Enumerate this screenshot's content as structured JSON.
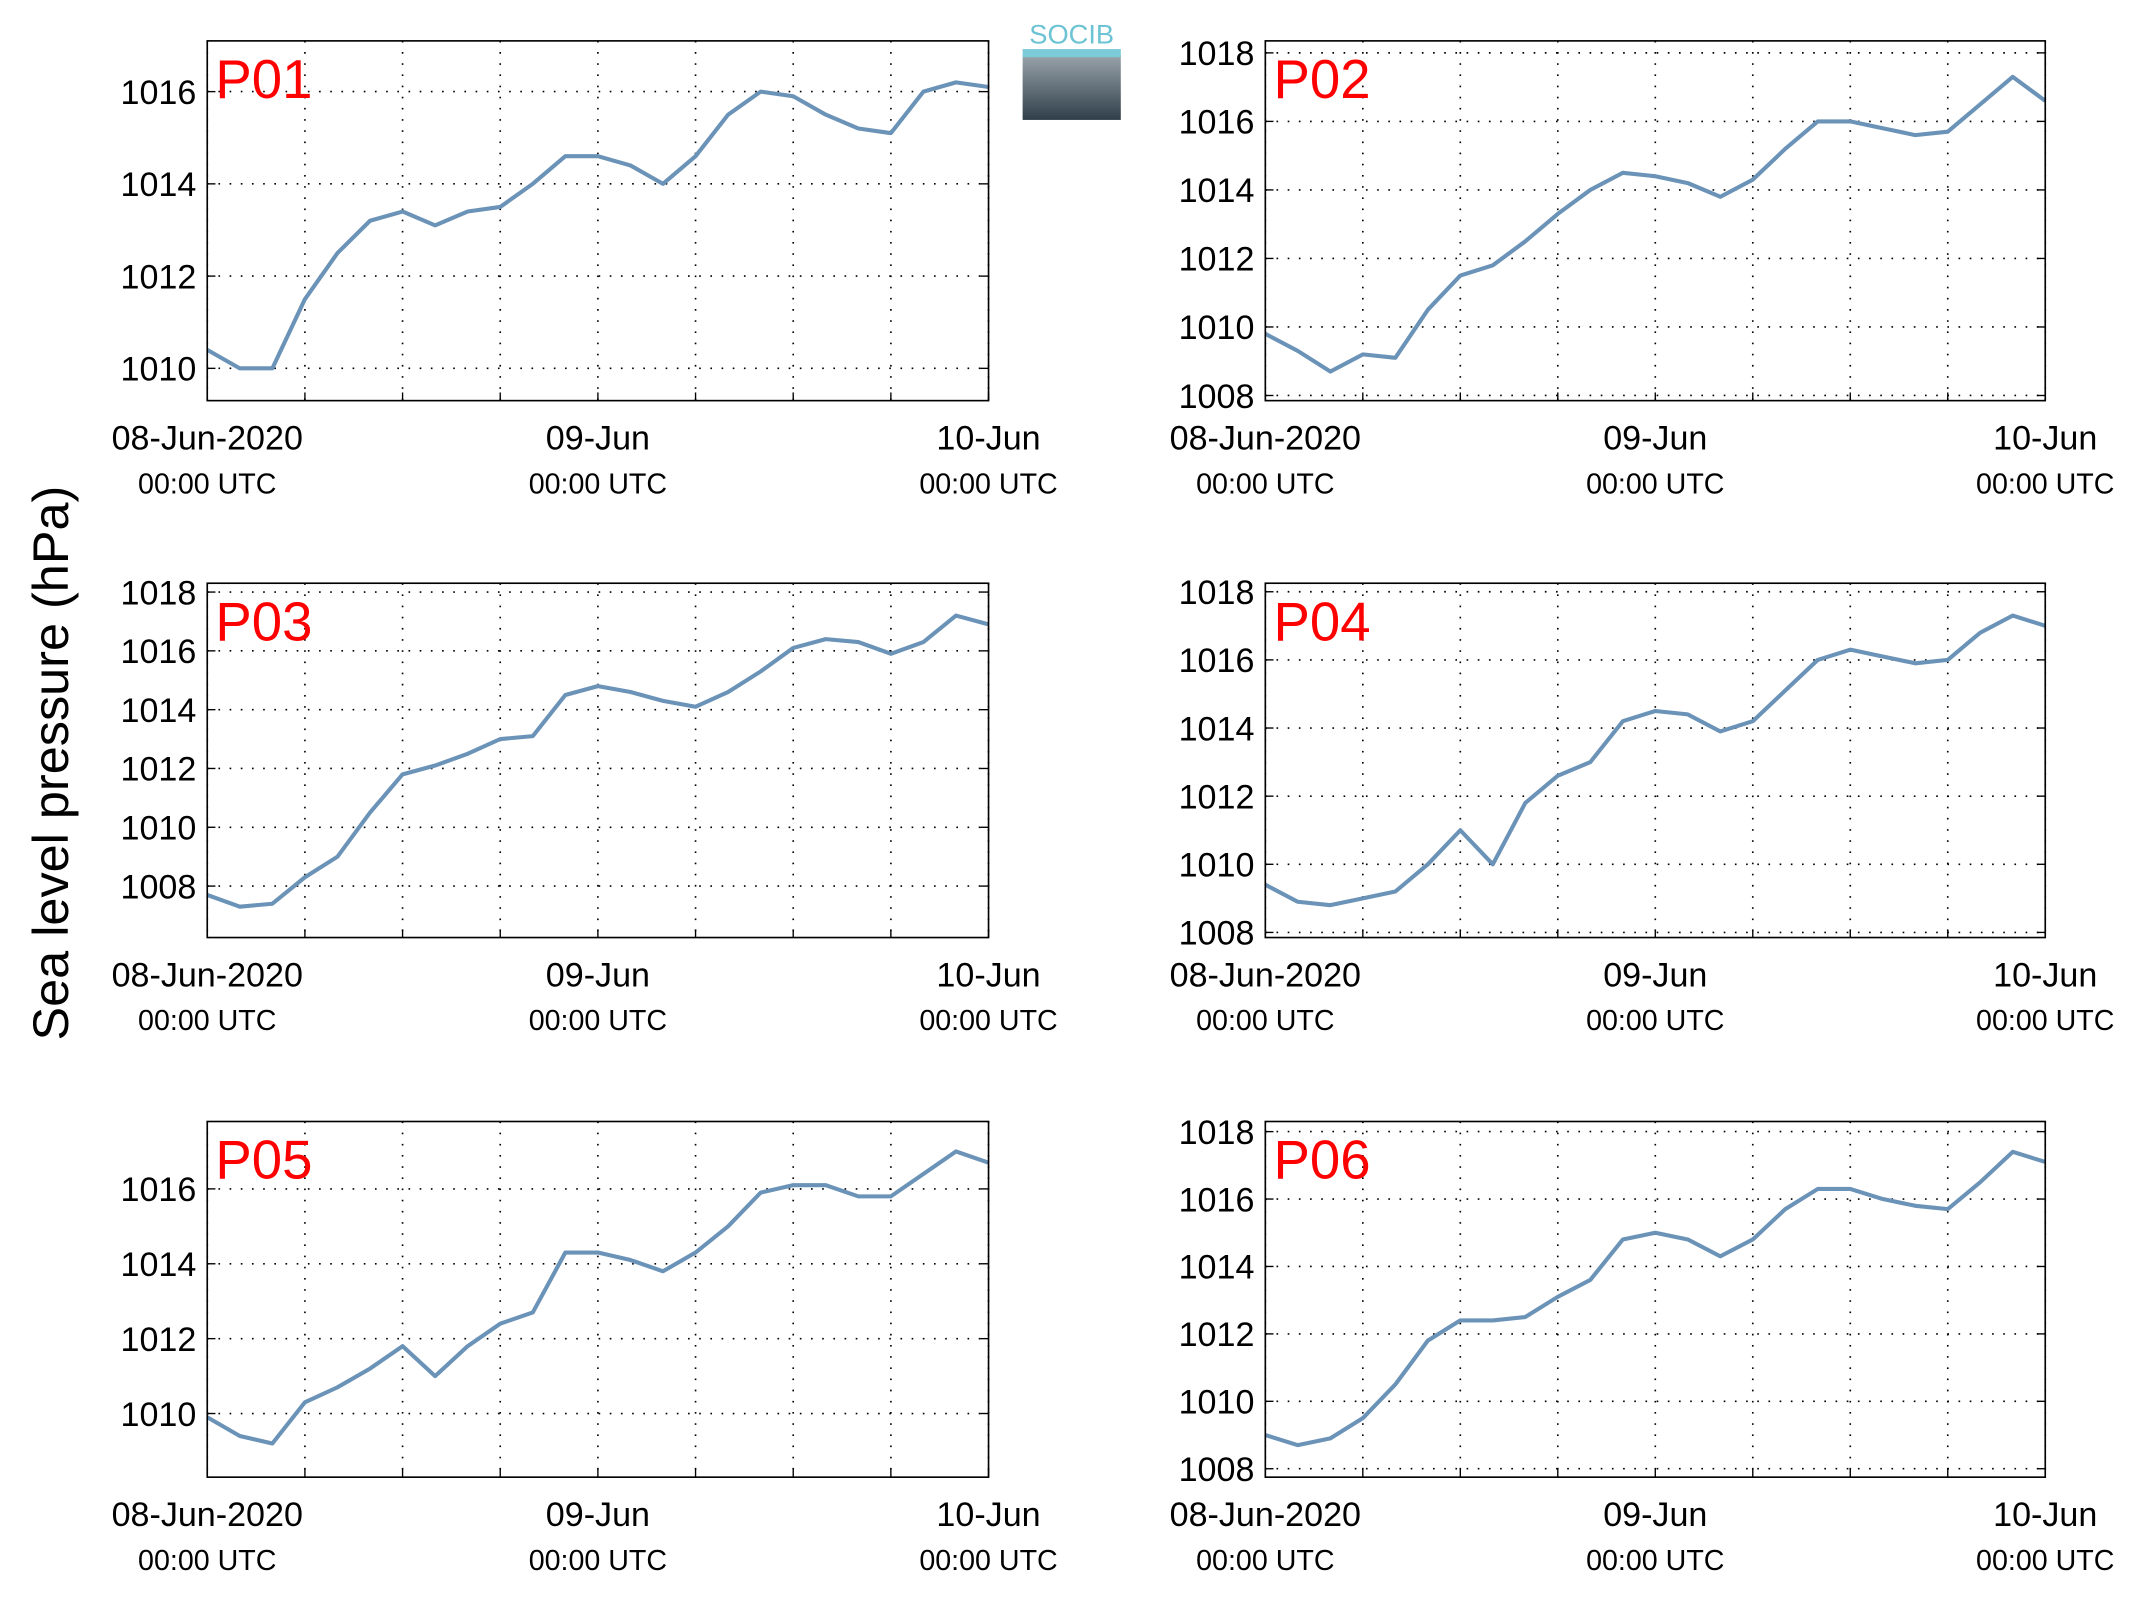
{
  "ylabel": "Sea level pressure (hPa)",
  "logo_text": "SOCIB",
  "chart_data": [
    {
      "type": "line",
      "title": "P01",
      "color": "#6b93b8",
      "grid": true,
      "x": [
        0,
        2,
        4,
        6,
        8,
        10,
        12,
        14,
        16,
        18,
        20,
        22,
        24,
        26,
        28,
        30,
        32,
        34,
        36,
        38,
        40,
        42,
        44,
        46,
        48
      ],
      "values": [
        1010.4,
        1010.0,
        1010.0,
        1011.5,
        1012.5,
        1013.2,
        1013.4,
        1013.1,
        1013.4,
        1013.5,
        1014.0,
        1014.6,
        1014.6,
        1014.4,
        1014.0,
        1014.6,
        1015.5,
        1016.0,
        1015.9,
        1015.5,
        1015.2,
        1015.1,
        1016.0,
        1016.2,
        1016.1
      ],
      "xlim": [
        0,
        48
      ],
      "xticks": [
        {
          "value": 0,
          "label": "08-Jun-2020",
          "sublabel": "00:00 UTC"
        },
        {
          "value": 24,
          "label": "09-Jun",
          "sublabel": "00:00 UTC"
        },
        {
          "value": 48,
          "label": "10-Jun",
          "sublabel": "00:00 UTC"
        }
      ],
      "xminor": [
        6,
        12,
        18,
        30,
        36,
        42
      ],
      "ylim": [
        1009.3,
        1017.1
      ],
      "yticks": [
        1010,
        1012,
        1014,
        1016
      ]
    },
    {
      "type": "line",
      "title": "P02",
      "color": "#6b93b8",
      "grid": true,
      "x": [
        0,
        2,
        4,
        6,
        8,
        10,
        12,
        14,
        16,
        18,
        20,
        22,
        24,
        26,
        28,
        30,
        32,
        34,
        36,
        38,
        40,
        42,
        44,
        46,
        48
      ],
      "values": [
        1009.8,
        1009.3,
        1008.7,
        1009.2,
        1009.1,
        1010.5,
        1011.5,
        1011.8,
        1012.5,
        1013.3,
        1014.0,
        1014.5,
        1014.4,
        1014.2,
        1013.8,
        1014.3,
        1015.2,
        1016.0,
        1016.0,
        1015.8,
        1015.6,
        1015.7,
        1016.5,
        1017.3,
        1016.6
      ],
      "xlim": [
        0,
        48
      ],
      "xticks": [
        {
          "value": 0,
          "label": "08-Jun-2020",
          "sublabel": "00:00 UTC"
        },
        {
          "value": 24,
          "label": "09-Jun",
          "sublabel": "00:00 UTC"
        },
        {
          "value": 48,
          "label": "10-Jun",
          "sublabel": "00:00 UTC"
        }
      ],
      "xminor": [
        6,
        12,
        18,
        30,
        36,
        42
      ],
      "ylim": [
        1007.85,
        1018.35
      ],
      "yticks": [
        1008,
        1010,
        1012,
        1014,
        1016,
        1018
      ]
    },
    {
      "type": "line",
      "title": "P03",
      "color": "#6b93b8",
      "grid": true,
      "x": [
        0,
        2,
        4,
        6,
        8,
        10,
        12,
        14,
        16,
        18,
        20,
        22,
        24,
        26,
        28,
        30,
        32,
        34,
        36,
        38,
        40,
        42,
        44,
        46,
        48
      ],
      "values": [
        1007.7,
        1007.3,
        1007.4,
        1008.3,
        1009.0,
        1010.5,
        1011.8,
        1012.1,
        1012.5,
        1013.0,
        1013.1,
        1014.5,
        1014.8,
        1014.6,
        1014.3,
        1014.1,
        1014.6,
        1015.3,
        1016.1,
        1016.4,
        1016.3,
        1015.9,
        1016.3,
        1017.2,
        1016.9
      ],
      "xlim": [
        0,
        48
      ],
      "xticks": [
        {
          "value": 0,
          "label": "08-Jun-2020",
          "sublabel": "00:00 UTC"
        },
        {
          "value": 24,
          "label": "09-Jun",
          "sublabel": "00:00 UTC"
        },
        {
          "value": 48,
          "label": "10-Jun",
          "sublabel": "00:00 UTC"
        }
      ],
      "xminor": [
        6,
        12,
        18,
        30,
        36,
        42
      ],
      "ylim": [
        1006.25,
        1018.3
      ],
      "yticks": [
        1008,
        1010,
        1012,
        1014,
        1016,
        1018
      ]
    },
    {
      "type": "line",
      "title": "P04",
      "color": "#6b93b8",
      "grid": true,
      "x": [
        0,
        2,
        4,
        6,
        8,
        10,
        12,
        14,
        16,
        18,
        20,
        22,
        24,
        26,
        28,
        30,
        32,
        34,
        36,
        38,
        40,
        42,
        44,
        46,
        48
      ],
      "values": [
        1009.4,
        1008.9,
        1008.8,
        1009.0,
        1009.2,
        1010.0,
        1011.0,
        1010.0,
        1011.8,
        1012.6,
        1013.0,
        1014.2,
        1014.5,
        1014.4,
        1013.9,
        1014.2,
        1015.1,
        1016.0,
        1016.3,
        1016.1,
        1015.9,
        1016.0,
        1016.8,
        1017.3,
        1017.0
      ],
      "xlim": [
        0,
        48
      ],
      "xticks": [
        {
          "value": 0,
          "label": "08-Jun-2020",
          "sublabel": "00:00 UTC"
        },
        {
          "value": 24,
          "label": "09-Jun",
          "sublabel": "00:00 UTC"
        },
        {
          "value": 48,
          "label": "10-Jun",
          "sublabel": "00:00 UTC"
        }
      ],
      "xminor": [
        6,
        12,
        18,
        30,
        36,
        42
      ],
      "ylim": [
        1007.85,
        1018.25
      ],
      "yticks": [
        1008,
        1010,
        1012,
        1014,
        1016,
        1018
      ]
    },
    {
      "type": "line",
      "title": "P05",
      "color": "#6b93b8",
      "grid": true,
      "x": [
        0,
        2,
        4,
        6,
        8,
        10,
        12,
        14,
        16,
        18,
        20,
        22,
        24,
        26,
        28,
        30,
        32,
        34,
        36,
        38,
        40,
        42,
        44,
        46,
        48
      ],
      "values": [
        1009.9,
        1009.4,
        1009.2,
        1010.3,
        1010.7,
        1011.2,
        1011.8,
        1011.0,
        1011.8,
        1012.4,
        1012.7,
        1014.3,
        1014.3,
        1014.1,
        1013.8,
        1014.3,
        1015.0,
        1015.9,
        1016.1,
        1016.1,
        1015.8,
        1015.8,
        1016.4,
        1017.0,
        1016.7
      ],
      "xlim": [
        0,
        48
      ],
      "xticks": [
        {
          "value": 0,
          "label": "08-Jun-2020",
          "sublabel": "00:00 UTC"
        },
        {
          "value": 24,
          "label": "09-Jun",
          "sublabel": "00:00 UTC"
        },
        {
          "value": 48,
          "label": "10-Jun",
          "sublabel": "00:00 UTC"
        }
      ],
      "xminor": [
        6,
        12,
        18,
        30,
        36,
        42
      ],
      "ylim": [
        1008.3,
        1017.8
      ],
      "yticks": [
        1010,
        1012,
        1014,
        1016
      ]
    },
    {
      "type": "line",
      "title": "P06",
      "color": "#6b93b8",
      "grid": true,
      "x": [
        0,
        2,
        4,
        6,
        8,
        10,
        12,
        14,
        16,
        18,
        20,
        22,
        24,
        26,
        28,
        30,
        32,
        34,
        36,
        38,
        40,
        42,
        44,
        46,
        48
      ],
      "values": [
        1009.0,
        1008.7,
        1008.9,
        1009.5,
        1010.5,
        1011.8,
        1012.4,
        1012.4,
        1012.5,
        1013.1,
        1013.6,
        1014.8,
        1015.0,
        1014.8,
        1014.3,
        1014.8,
        1015.7,
        1016.3,
        1016.3,
        1016.0,
        1015.8,
        1015.7,
        1016.5,
        1017.4,
        1017.1
      ],
      "xlim": [
        0,
        48
      ],
      "xticks": [
        {
          "value": 0,
          "label": "08-Jun-2020",
          "sublabel": "00:00 UTC"
        },
        {
          "value": 24,
          "label": "09-Jun",
          "sublabel": "00:00 UTC"
        },
        {
          "value": 48,
          "label": "10-Jun",
          "sublabel": "00:00 UTC"
        }
      ],
      "xminor": [
        6,
        12,
        18,
        30,
        36,
        42
      ],
      "ylim": [
        1007.75,
        1018.3
      ],
      "yticks": [
        1008,
        1010,
        1012,
        1014,
        1016,
        1018
      ]
    }
  ]
}
